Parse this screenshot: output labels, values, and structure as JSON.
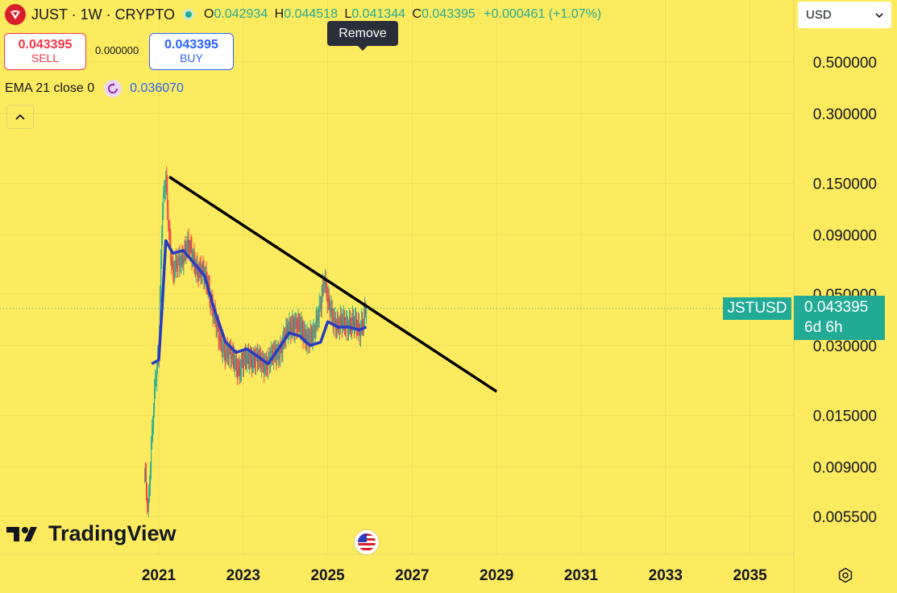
{
  "header": {
    "title": "JUST · 1W · CRYPTO",
    "o_label": "O",
    "o_value": "0.042934",
    "h_label": "H",
    "h_value": "0.044518",
    "l_label": "L",
    "l_value": "0.041344",
    "c_label": "C",
    "c_value": "0.043395",
    "change": "+0.000461 (+1.07%)"
  },
  "trade": {
    "sell_price": "0.043395",
    "sell_label": "SELL",
    "spread": "0.000000",
    "buy_price": "0.043395",
    "buy_label": "BUY"
  },
  "tooltip": {
    "remove_label": "Remove"
  },
  "indicator": {
    "label": "EMA 21 close 0",
    "value": "0.036070"
  },
  "currency": {
    "label": "USD"
  },
  "price_tag": {
    "symbol": "JSTUSD",
    "price": "0.043395",
    "countdown": "6d 6h"
  },
  "branding": {
    "name": "TradingView"
  },
  "colors": {
    "background": "#fdeb5f",
    "up": "#22ab94",
    "down": "#f23645",
    "ema": "#2a3bbf",
    "trendline": "#000000"
  },
  "chart_data": {
    "type": "candlestick",
    "y_scale": "log",
    "y_ticks": [
      "0.500000",
      "0.300000",
      "0.150000",
      "0.090000",
      "0.050000",
      "0.030000",
      "0.015000",
      "0.009000",
      "0.005500"
    ],
    "x_ticks": [
      "2021",
      "2023",
      "2025",
      "2027",
      "2029",
      "2031",
      "2033",
      "2035"
    ],
    "last_price": 0.043395,
    "price_series": [
      [
        "2020-09",
        0.0085
      ],
      [
        "2020-10",
        0.0055
      ],
      [
        "2020-11",
        0.012
      ],
      [
        "2020-12",
        0.022
      ],
      [
        "2021-01",
        0.028
      ],
      [
        "2021-02",
        0.11
      ],
      [
        "2021-03",
        0.16
      ],
      [
        "2021-04",
        0.09
      ],
      [
        "2021-05",
        0.06
      ],
      [
        "2021-07",
        0.07
      ],
      [
        "2021-09",
        0.08
      ],
      [
        "2021-12",
        0.065
      ],
      [
        "2022-03",
        0.055
      ],
      [
        "2022-06",
        0.032
      ],
      [
        "2022-09",
        0.027
      ],
      [
        "2022-12",
        0.024
      ],
      [
        "2023-03",
        0.027
      ],
      [
        "2023-06",
        0.025
      ],
      [
        "2023-09",
        0.026
      ],
      [
        "2023-12",
        0.03
      ],
      [
        "2024-03",
        0.038
      ],
      [
        "2024-06",
        0.034
      ],
      [
        "2024-09",
        0.032
      ],
      [
        "2024-12",
        0.058
      ],
      [
        "2025-01",
        0.045
      ],
      [
        "2025-04",
        0.036
      ],
      [
        "2025-07",
        0.038
      ],
      [
        "2025-10",
        0.035
      ],
      [
        "2025-12",
        0.043395
      ]
    ],
    "ema_series": [
      [
        "2020-11",
        0.025
      ],
      [
        "2021-01",
        0.026
      ],
      [
        "2021-02",
        0.045
      ],
      [
        "2021-03",
        0.085
      ],
      [
        "2021-05",
        0.075
      ],
      [
        "2021-08",
        0.077
      ],
      [
        "2021-11",
        0.068
      ],
      [
        "2022-02",
        0.06
      ],
      [
        "2022-05",
        0.042
      ],
      [
        "2022-08",
        0.031
      ],
      [
        "2022-11",
        0.028
      ],
      [
        "2023-02",
        0.029
      ],
      [
        "2023-05",
        0.027
      ],
      [
        "2023-08",
        0.025
      ],
      [
        "2023-11",
        0.029
      ],
      [
        "2024-02",
        0.034
      ],
      [
        "2024-05",
        0.033
      ],
      [
        "2024-08",
        0.03
      ],
      [
        "2024-11",
        0.031
      ],
      [
        "2025-01",
        0.038
      ],
      [
        "2025-04",
        0.036
      ],
      [
        "2025-07",
        0.036
      ],
      [
        "2025-10",
        0.035
      ],
      [
        "2025-12",
        0.03607
      ]
    ],
    "trendline": [
      [
        "2021-04",
        0.16
      ],
      [
        "2029-01",
        0.019
      ]
    ]
  }
}
